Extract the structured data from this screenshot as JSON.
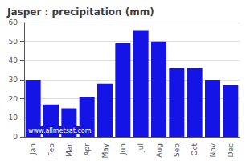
{
  "chart_data": {
    "type": "bar",
    "title": "Jasper : precipitation (mm)",
    "categories": [
      "Jan",
      "Feb",
      "Mar",
      "Apr",
      "May",
      "Jun",
      "Jul",
      "Aug",
      "Sep",
      "Oct",
      "Nov",
      "Dec"
    ],
    "values": [
      30,
      17,
      15,
      21,
      28,
      49,
      56,
      50,
      36,
      36,
      30,
      27
    ],
    "color": "#1414e6",
    "ylim": [
      0,
      60
    ],
    "yticks": [
      0,
      10,
      20,
      30,
      40,
      50,
      60
    ],
    "grid": true,
    "annotation": "www.allmetsat.com"
  }
}
